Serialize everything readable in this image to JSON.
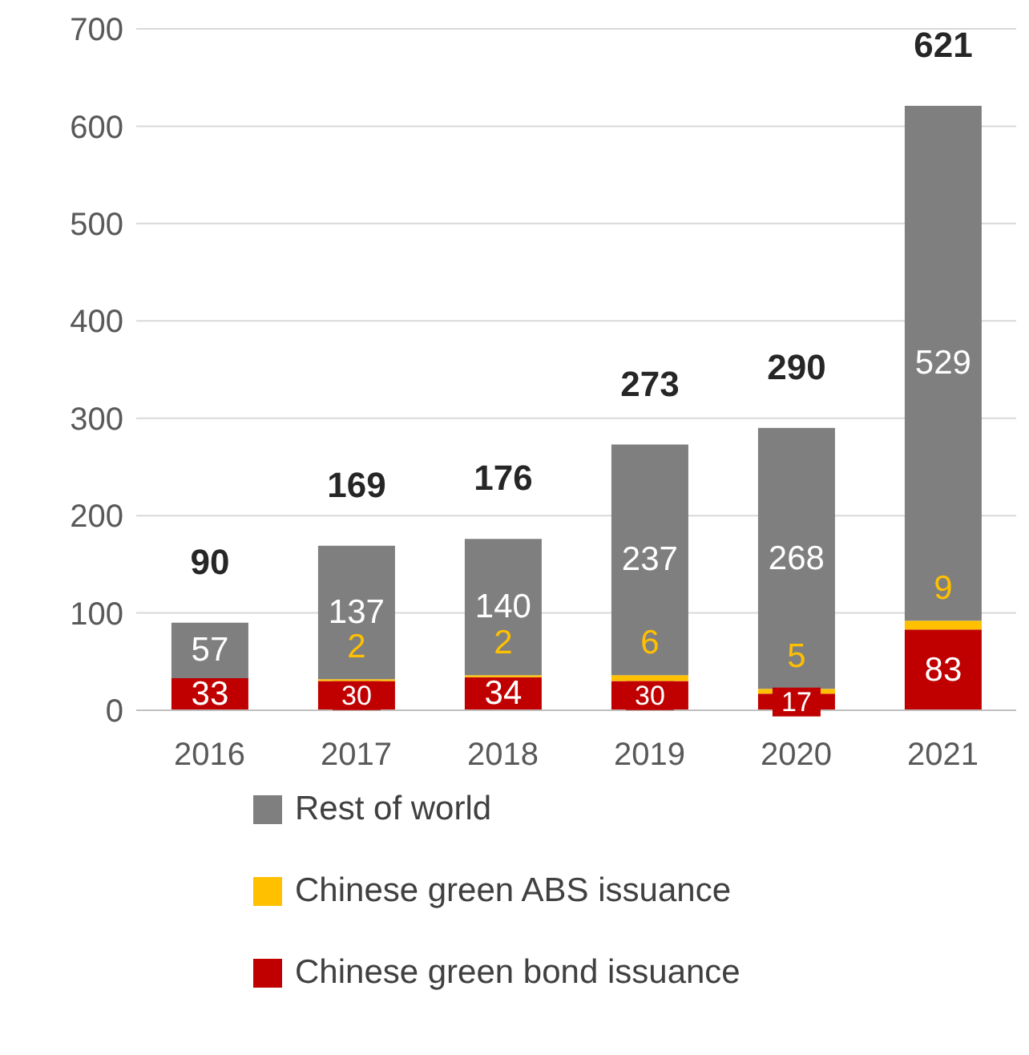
{
  "chart_data": {
    "type": "bar",
    "stacked": true,
    "categories": [
      "2016",
      "2017",
      "2018",
      "2019",
      "2020",
      "2021"
    ],
    "series": [
      {
        "name": "Chinese green bond issuance",
        "color": "#c00000",
        "values": [
          33,
          30,
          34,
          30,
          17,
          83
        ],
        "value_labels": [
          "33",
          "30",
          "34",
          "30",
          "17",
          "83"
        ]
      },
      {
        "name": "Chinese green ABS issuance",
        "color": "#ffc000",
        "values": [
          0,
          2,
          2,
          6,
          5,
          9
        ],
        "value_labels": [
          null,
          "2",
          "2",
          "6",
          "5",
          "9"
        ]
      },
      {
        "name": "Rest of world",
        "color": "#7f7f7f",
        "values": [
          57,
          137,
          140,
          237,
          268,
          529
        ],
        "value_labels": [
          "57",
          "137",
          "140",
          "237",
          "268",
          "529"
        ]
      }
    ],
    "totals": [
      "90",
      "169",
      "176",
      "273",
      "290",
      "621"
    ],
    "ylim": [
      0,
      700
    ],
    "yticks": [
      0,
      100,
      200,
      300,
      400,
      500,
      600,
      700
    ],
    "grid": "y",
    "legend": "bottom"
  }
}
